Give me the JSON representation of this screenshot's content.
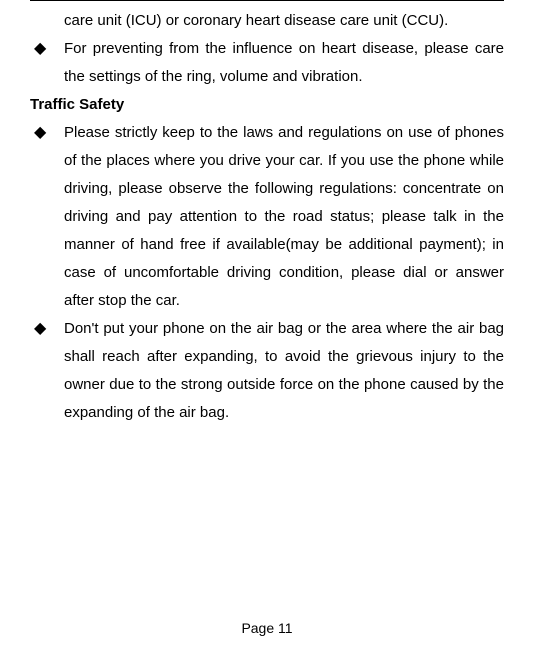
{
  "continuedItem": "care unit (ICU) or coronary heart disease care unit (CCU).",
  "firstSectionBullets": [
    "For preventing from the influence on heart disease, please care the settings of the ring, volume and vibration."
  ],
  "sectionHeading": "Traffic Safety",
  "secondSectionBullets": [
    "Please strictly keep to the laws and regulations on use of phones of the places where you drive your car. If you use the phone while driving, please observe the following regulations: concentrate on driving and pay attention to the road status; please talk in the manner of hand free if available(may be additional payment); in case of uncomfortable driving condition, please dial or answer after stop the car.",
    "Don't put your phone on the air bag or the area where the air bag shall reach after expanding, to avoid the grievous injury to the owner due to the strong outside force on the phone caused by the expanding of the air bag."
  ],
  "pageNumber": "Page 11"
}
